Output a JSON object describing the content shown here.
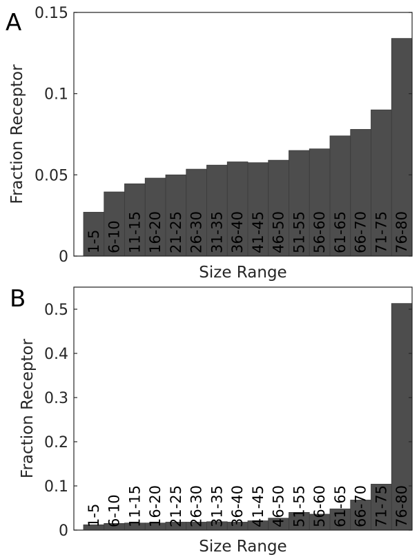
{
  "chart_data": [
    {
      "type": "bar",
      "panel_label": "A",
      "categories": [
        "1-5",
        "6-10",
        "11-15",
        "16-20",
        "21-25",
        "26-30",
        "31-35",
        "36-40",
        "41-45",
        "46-50",
        "51-55",
        "56-60",
        "61-65",
        "66-70",
        "71-75",
        "76-80"
      ],
      "values": [
        0.027,
        0.0395,
        0.0445,
        0.048,
        0.05,
        0.0535,
        0.056,
        0.058,
        0.0575,
        0.059,
        0.065,
        0.066,
        0.074,
        0.078,
        0.09,
        0.134
      ],
      "xlabel": "Size Range",
      "ylabel": "Fraction Receptor",
      "ylim": [
        0,
        0.15
      ],
      "yticks": [
        "0",
        "0.05",
        "0.1",
        "0.15"
      ],
      "bar_color": "#4d4d4d",
      "grid": false
    },
    {
      "type": "bar",
      "panel_label": "B",
      "categories": [
        "1-5",
        "6-10",
        "11-15",
        "16-20",
        "21-25",
        "26-30",
        "31-35",
        "36-40",
        "41-45",
        "46-50",
        "51-55",
        "56-60",
        "61-65",
        "66-70",
        "71-75",
        "76-80"
      ],
      "values": [
        0.012,
        0.015,
        0.016,
        0.016,
        0.018,
        0.018,
        0.019,
        0.018,
        0.021,
        0.027,
        0.04,
        0.036,
        0.048,
        0.068,
        0.104,
        0.513
      ],
      "xlabel": "Size Range",
      "ylabel": "Fraction Receptor",
      "ylim": [
        0,
        0.55
      ],
      "yticks": [
        "0",
        "0.1",
        "0.2",
        "0.3",
        "0.4",
        "0.5"
      ],
      "bar_color": "#4d4d4d",
      "grid": false
    }
  ]
}
